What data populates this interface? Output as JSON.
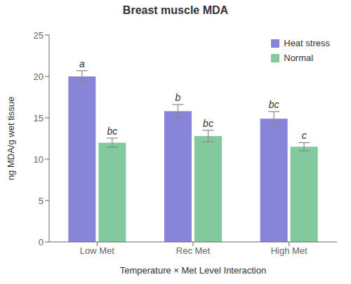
{
  "chart_data": {
    "type": "bar",
    "title": "Breast muscle MDA",
    "xlabel": "Temperature × Met Level Interaction",
    "ylabel": "ng MDA/g wet tissue",
    "categories": [
      "Low Met",
      "Rec Met",
      "High Met"
    ],
    "series": [
      {
        "name": "Heat stress",
        "color": "#8884d8",
        "values": [
          20.0,
          15.8,
          14.9
        ],
        "errors": [
          0.7,
          0.8,
          0.85
        ],
        "labels": [
          "a",
          "b",
          "bc"
        ]
      },
      {
        "name": "Normal",
        "color": "#82ca9d",
        "values": [
          12.0,
          12.8,
          11.5
        ],
        "errors": [
          0.55,
          0.7,
          0.5
        ],
        "labels": [
          "bc",
          "bc",
          "c"
        ]
      }
    ],
    "ylim": [
      0,
      25
    ],
    "yticks": [
      0,
      5,
      10,
      15,
      20,
      25
    ],
    "grid": false,
    "legend": "upper right"
  }
}
